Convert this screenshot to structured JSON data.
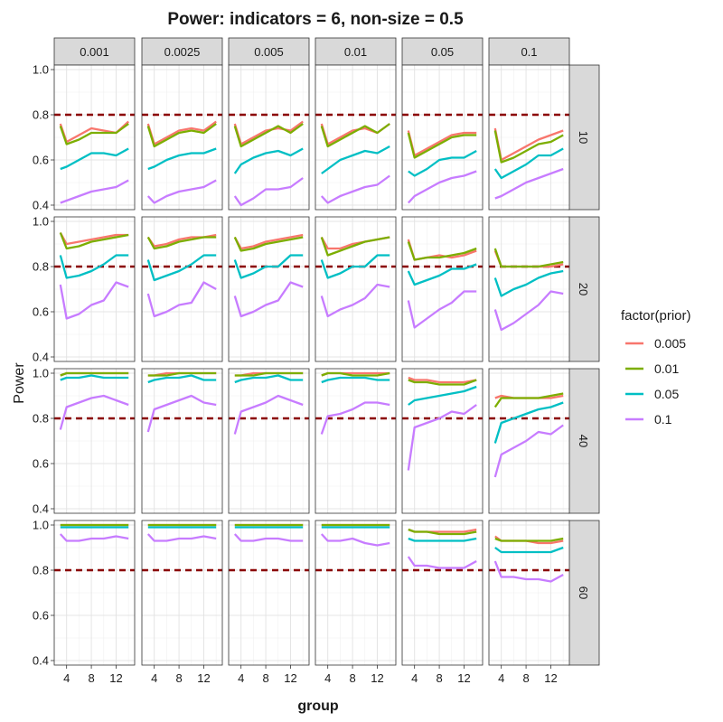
{
  "chart_data": {
    "type": "line",
    "title": "Power: indicators = 6, non-size = 0.5",
    "xlabel": "group",
    "ylabel": "Power",
    "legend_title": "factor(prior)",
    "legend_position": "right",
    "grid": true,
    "facet_cols": [
      "0.001",
      "0.0025",
      "0.005",
      "0.01",
      "0.05",
      "0.1"
    ],
    "facet_rows": [
      "10",
      "20",
      "40",
      "60"
    ],
    "x_ticks": [
      4,
      8,
      12
    ],
    "xlim": [
      2,
      15
    ],
    "row_ylims": [
      [
        0.38,
        1.02
      ],
      [
        0.38,
        1.02
      ],
      [
        0.38,
        1.02
      ],
      [
        0.38,
        1.02
      ]
    ],
    "y_ticks": [
      0.4,
      0.6,
      0.8,
      1.0
    ],
    "y_tick_labels": [
      "0.4",
      "0.6",
      "0.8",
      "1.0"
    ],
    "reference_line": {
      "y": 0.8,
      "color": "#8b0000",
      "style": "dashed"
    },
    "x": [
      3,
      4,
      6,
      8,
      10,
      12,
      14
    ],
    "series_names": [
      "0.005",
      "0.01",
      "0.05",
      "0.1"
    ],
    "series_colors": [
      "#f8766d",
      "#7cae00",
      "#00bfc4",
      "#c77cff"
    ],
    "panels": [
      [
        [
          [
            0.76,
            0.68,
            0.71,
            0.74,
            0.73,
            0.72,
            0.77
          ],
          [
            0.75,
            0.67,
            0.69,
            0.72,
            0.72,
            0.72,
            0.76
          ],
          [
            0.56,
            0.57,
            0.6,
            0.63,
            0.63,
            0.62,
            0.65
          ],
          [
            0.41,
            0.42,
            0.44,
            0.46,
            0.47,
            0.48,
            0.51
          ]
        ],
        [
          [
            0.76,
            0.67,
            0.7,
            0.73,
            0.74,
            0.73,
            0.77
          ],
          [
            0.75,
            0.66,
            0.69,
            0.72,
            0.73,
            0.72,
            0.76
          ],
          [
            0.56,
            0.57,
            0.6,
            0.62,
            0.63,
            0.63,
            0.65
          ],
          [
            0.44,
            0.41,
            0.44,
            0.46,
            0.47,
            0.48,
            0.51
          ]
        ],
        [
          [
            0.76,
            0.67,
            0.7,
            0.73,
            0.74,
            0.73,
            0.77
          ],
          [
            0.75,
            0.66,
            0.69,
            0.72,
            0.75,
            0.72,
            0.76
          ],
          [
            0.54,
            0.58,
            0.61,
            0.63,
            0.64,
            0.62,
            0.65
          ],
          [
            0.44,
            0.4,
            0.43,
            0.47,
            0.47,
            0.48,
            0.52
          ]
        ],
        [
          [
            0.76,
            0.67,
            0.7,
            0.73,
            0.74,
            0.72,
            0.76
          ],
          [
            0.75,
            0.66,
            0.69,
            0.72,
            0.75,
            0.72,
            0.76
          ],
          [
            0.54,
            0.56,
            0.6,
            0.62,
            0.64,
            0.63,
            0.66
          ],
          [
            0.44,
            0.41,
            0.44,
            0.46,
            0.48,
            0.49,
            0.53
          ]
        ],
        [
          [
            0.73,
            0.62,
            0.65,
            0.68,
            0.71,
            0.72,
            0.72
          ],
          [
            0.72,
            0.61,
            0.64,
            0.67,
            0.7,
            0.71,
            0.71
          ],
          [
            0.55,
            0.53,
            0.56,
            0.6,
            0.61,
            0.61,
            0.64
          ],
          [
            0.41,
            0.44,
            0.47,
            0.5,
            0.52,
            0.53,
            0.55
          ]
        ],
        [
          [
            0.74,
            0.6,
            0.63,
            0.66,
            0.69,
            0.71,
            0.73
          ],
          [
            0.73,
            0.59,
            0.61,
            0.64,
            0.67,
            0.68,
            0.71
          ],
          [
            0.56,
            0.52,
            0.55,
            0.58,
            0.62,
            0.62,
            0.65
          ],
          [
            0.43,
            0.44,
            0.47,
            0.5,
            0.52,
            0.54,
            0.56
          ]
        ]
      ],
      [
        [
          [
            0.95,
            0.9,
            0.91,
            0.92,
            0.93,
            0.94,
            0.94
          ],
          [
            0.95,
            0.88,
            0.89,
            0.91,
            0.92,
            0.93,
            0.94
          ],
          [
            0.85,
            0.75,
            0.76,
            0.78,
            0.81,
            0.85,
            0.85
          ],
          [
            0.72,
            0.57,
            0.59,
            0.63,
            0.65,
            0.73,
            0.71
          ]
        ],
        [
          [
            0.93,
            0.89,
            0.9,
            0.92,
            0.93,
            0.93,
            0.94
          ],
          [
            0.93,
            0.88,
            0.89,
            0.91,
            0.92,
            0.93,
            0.93
          ],
          [
            0.83,
            0.74,
            0.76,
            0.78,
            0.81,
            0.85,
            0.85
          ],
          [
            0.68,
            0.58,
            0.6,
            0.63,
            0.64,
            0.73,
            0.7
          ]
        ],
        [
          [
            0.93,
            0.88,
            0.89,
            0.91,
            0.92,
            0.93,
            0.94
          ],
          [
            0.93,
            0.87,
            0.88,
            0.9,
            0.91,
            0.92,
            0.93
          ],
          [
            0.83,
            0.75,
            0.77,
            0.8,
            0.8,
            0.85,
            0.85
          ],
          [
            0.67,
            0.58,
            0.6,
            0.63,
            0.65,
            0.73,
            0.71
          ]
        ],
        [
          [
            0.93,
            0.88,
            0.88,
            0.9,
            0.91,
            0.92,
            0.93
          ],
          [
            0.93,
            0.85,
            0.87,
            0.89,
            0.91,
            0.92,
            0.93
          ],
          [
            0.83,
            0.75,
            0.77,
            0.8,
            0.8,
            0.85,
            0.85
          ],
          [
            0.67,
            0.58,
            0.61,
            0.63,
            0.66,
            0.72,
            0.71
          ]
        ],
        [
          [
            0.92,
            0.83,
            0.84,
            0.85,
            0.84,
            0.85,
            0.87
          ],
          [
            0.91,
            0.83,
            0.84,
            0.84,
            0.85,
            0.86,
            0.88
          ],
          [
            0.78,
            0.72,
            0.74,
            0.76,
            0.79,
            0.79,
            0.81
          ],
          [
            0.65,
            0.53,
            0.57,
            0.61,
            0.64,
            0.69,
            0.69
          ]
        ],
        [
          [
            0.87,
            0.8,
            0.8,
            0.8,
            0.8,
            0.8,
            0.81
          ],
          [
            0.88,
            0.8,
            0.8,
            0.8,
            0.8,
            0.81,
            0.82
          ],
          [
            0.75,
            0.67,
            0.7,
            0.72,
            0.75,
            0.77,
            0.78
          ],
          [
            0.61,
            0.52,
            0.55,
            0.59,
            0.63,
            0.69,
            0.68
          ]
        ]
      ],
      [
        [
          [
            0.99,
            1.0,
            1.0,
            1.0,
            1.0,
            1.0,
            1.0
          ],
          [
            0.99,
            1.0,
            1.0,
            1.0,
            1.0,
            1.0,
            1.0
          ],
          [
            0.97,
            0.98,
            0.98,
            0.99,
            0.98,
            0.98,
            0.98
          ],
          [
            0.75,
            0.85,
            0.87,
            0.89,
            0.9,
            0.88,
            0.86
          ]
        ],
        [
          [
            0.99,
            0.99,
            1.0,
            1.0,
            1.0,
            1.0,
            1.0
          ],
          [
            0.99,
            0.99,
            0.99,
            1.0,
            1.0,
            1.0,
            1.0
          ],
          [
            0.96,
            0.97,
            0.98,
            0.98,
            0.99,
            0.97,
            0.97
          ],
          [
            0.74,
            0.84,
            0.86,
            0.88,
            0.9,
            0.87,
            0.86
          ]
        ],
        [
          [
            0.99,
            0.99,
            1.0,
            1.0,
            1.0,
            1.0,
            1.0
          ],
          [
            0.99,
            0.99,
            0.99,
            1.0,
            1.0,
            1.0,
            1.0
          ],
          [
            0.96,
            0.97,
            0.98,
            0.98,
            0.99,
            0.97,
            0.97
          ],
          [
            0.73,
            0.83,
            0.85,
            0.87,
            0.9,
            0.88,
            0.86
          ]
        ],
        [
          [
            0.99,
            1.0,
            1.0,
            1.0,
            1.0,
            1.0,
            1.0
          ],
          [
            0.99,
            1.0,
            1.0,
            0.99,
            0.99,
            0.99,
            1.0
          ],
          [
            0.96,
            0.97,
            0.98,
            0.98,
            0.98,
            0.97,
            0.97
          ],
          [
            0.73,
            0.81,
            0.82,
            0.84,
            0.87,
            0.87,
            0.86
          ]
        ],
        [
          [
            0.98,
            0.97,
            0.97,
            0.96,
            0.96,
            0.96,
            0.97
          ],
          [
            0.97,
            0.96,
            0.96,
            0.95,
            0.95,
            0.95,
            0.97
          ],
          [
            0.86,
            0.88,
            0.89,
            0.9,
            0.91,
            0.92,
            0.94
          ],
          [
            0.57,
            0.76,
            0.78,
            0.8,
            0.83,
            0.82,
            0.86
          ]
        ],
        [
          [
            0.89,
            0.9,
            0.89,
            0.89,
            0.89,
            0.89,
            0.9
          ],
          [
            0.85,
            0.89,
            0.89,
            0.89,
            0.89,
            0.9,
            0.91
          ],
          [
            0.69,
            0.78,
            0.8,
            0.82,
            0.84,
            0.85,
            0.87
          ],
          [
            0.54,
            0.64,
            0.67,
            0.7,
            0.74,
            0.73,
            0.77
          ]
        ]
      ],
      [
        [
          [
            1.0,
            1.0,
            1.0,
            1.0,
            1.0,
            1.0,
            1.0
          ],
          [
            1.0,
            1.0,
            1.0,
            1.0,
            1.0,
            1.0,
            1.0
          ],
          [
            0.99,
            0.99,
            0.99,
            0.99,
            0.99,
            0.99,
            0.99
          ],
          [
            0.96,
            0.93,
            0.93,
            0.94,
            0.94,
            0.95,
            0.94
          ]
        ],
        [
          [
            1.0,
            1.0,
            1.0,
            1.0,
            1.0,
            1.0,
            1.0
          ],
          [
            1.0,
            1.0,
            1.0,
            1.0,
            1.0,
            1.0,
            1.0
          ],
          [
            0.99,
            0.99,
            0.99,
            0.99,
            0.99,
            0.99,
            0.99
          ],
          [
            0.96,
            0.93,
            0.93,
            0.94,
            0.94,
            0.95,
            0.94
          ]
        ],
        [
          [
            1.0,
            1.0,
            1.0,
            1.0,
            1.0,
            1.0,
            1.0
          ],
          [
            1.0,
            1.0,
            1.0,
            1.0,
            1.0,
            1.0,
            1.0
          ],
          [
            0.99,
            0.99,
            0.99,
            0.99,
            0.99,
            0.99,
            0.99
          ],
          [
            0.96,
            0.93,
            0.93,
            0.94,
            0.94,
            0.93,
            0.93
          ]
        ],
        [
          [
            1.0,
            1.0,
            1.0,
            1.0,
            1.0,
            1.0,
            1.0
          ],
          [
            1.0,
            1.0,
            1.0,
            1.0,
            1.0,
            1.0,
            1.0
          ],
          [
            0.99,
            0.99,
            0.99,
            0.99,
            0.99,
            0.99,
            0.99
          ],
          [
            0.96,
            0.93,
            0.93,
            0.94,
            0.92,
            0.91,
            0.92
          ]
        ],
        [
          [
            0.98,
            0.97,
            0.97,
            0.97,
            0.97,
            0.97,
            0.98
          ],
          [
            0.98,
            0.97,
            0.97,
            0.96,
            0.96,
            0.96,
            0.97
          ],
          [
            0.94,
            0.93,
            0.93,
            0.93,
            0.93,
            0.93,
            0.94
          ],
          [
            0.86,
            0.82,
            0.82,
            0.81,
            0.81,
            0.81,
            0.84
          ]
        ],
        [
          [
            0.95,
            0.93,
            0.93,
            0.93,
            0.92,
            0.92,
            0.93
          ],
          [
            0.94,
            0.93,
            0.93,
            0.93,
            0.93,
            0.93,
            0.94
          ],
          [
            0.9,
            0.88,
            0.88,
            0.88,
            0.88,
            0.88,
            0.9
          ],
          [
            0.84,
            0.77,
            0.77,
            0.76,
            0.76,
            0.75,
            0.78
          ]
        ]
      ]
    ]
  }
}
